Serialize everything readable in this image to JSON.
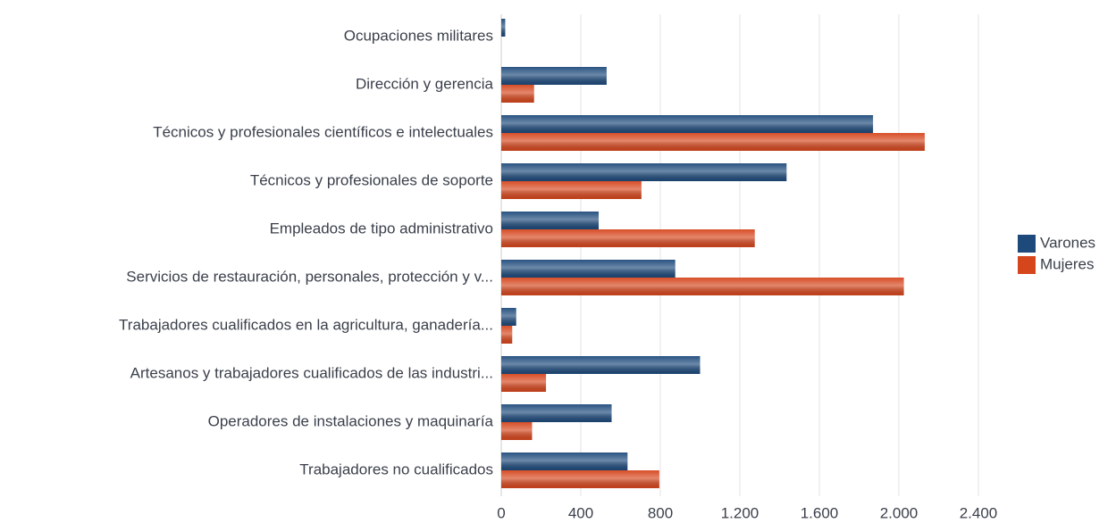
{
  "chart_data": {
    "type": "bar",
    "orientation": "horizontal",
    "categories": [
      "Ocupaciones militares",
      "Dirección y gerencia",
      "Técnicos y profesionales científicos e intelectuales",
      "Técnicos y profesionales de soporte",
      "Empleados de tipo administrativo",
      "Servicios de restauración, personales, protección y v...",
      "Trabajadores cualificados en la agricultura, ganadería...",
      "Artesanos y trabajadores cualificados de las industri...",
      "Operadores de instalaciones y maquinaría",
      "Trabajadores no cualificados"
    ],
    "series": [
      {
        "name": "Varones",
        "color": "#1e4a7b",
        "values": [
          20,
          530,
          1870,
          1435,
          490,
          875,
          75,
          1000,
          555,
          635
        ]
      },
      {
        "name": "Mujeres",
        "color": "#d5461d",
        "values": [
          0,
          165,
          2130,
          705,
          1275,
          2025,
          55,
          225,
          155,
          795
        ]
      }
    ],
    "xlim": [
      0,
      2400
    ],
    "xticks": [
      0,
      400,
      800,
      {
        "value": 1200,
        "label": "1.200"
      },
      {
        "value": 1600,
        "label": "1.600"
      },
      {
        "value": 2000,
        "label": "2.000"
      },
      {
        "value": 2400,
        "label": "2.400"
      }
    ],
    "grid": true,
    "legend": "right"
  }
}
